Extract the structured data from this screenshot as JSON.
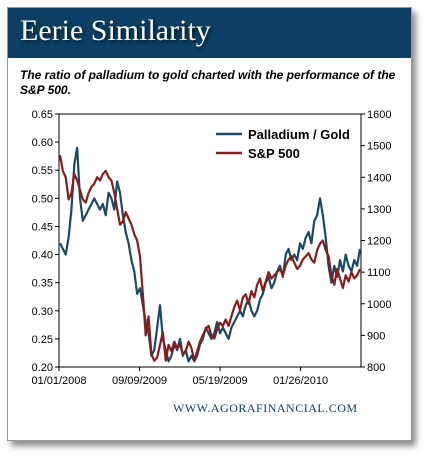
{
  "title": "Eerie Similarity",
  "subtitle": "The ratio of palladium to gold charted with the performance of the S&P 500.",
  "footer": "WWW.AGORAFINANCIAL.COM",
  "colors": {
    "header": "#0c3f63",
    "palladium": "#1a4a66",
    "sp500": "#8b1a1a"
  },
  "chart_data": {
    "type": "line",
    "x_ticks": [
      "01/01/2008",
      "09/09/2009",
      "05/19/2009",
      "01/26/2010"
    ],
    "y_left_ticks": [
      "0.20",
      "0.25",
      "0.30",
      "0.35",
      "0.40",
      "0.45",
      "0.50",
      "0.55",
      "0.60",
      "0.65"
    ],
    "y_right_ticks": [
      "800",
      "900",
      "1000",
      "1100",
      "1200",
      "1300",
      "1400",
      "1500",
      "1600"
    ],
    "ylim_left": [
      0.2,
      0.65
    ],
    "ylim_right": [
      800,
      1600
    ],
    "legend_position": "top-right",
    "series": [
      {
        "name": "Palladium / Gold",
        "axis": "left",
        "color": "#1a4a66",
        "values": [
          0.42,
          0.41,
          0.4,
          0.43,
          0.48,
          0.56,
          0.59,
          0.5,
          0.46,
          0.47,
          0.48,
          0.49,
          0.5,
          0.49,
          0.48,
          0.49,
          0.47,
          0.51,
          0.5,
          0.48,
          0.53,
          0.51,
          0.47,
          0.44,
          0.42,
          0.39,
          0.37,
          0.33,
          0.34,
          0.31,
          0.28,
          0.26,
          0.22,
          0.23,
          0.27,
          0.31,
          0.25,
          0.23,
          0.21,
          0.22,
          0.24,
          0.23,
          0.25,
          0.22,
          0.23,
          0.21,
          0.22,
          0.21,
          0.22,
          0.24,
          0.25,
          0.27,
          0.26,
          0.25,
          0.26,
          0.28,
          0.26,
          0.27,
          0.26,
          0.25,
          0.27,
          0.28,
          0.29,
          0.3,
          0.29,
          0.31,
          0.32,
          0.3,
          0.29,
          0.3,
          0.32,
          0.33,
          0.35,
          0.36,
          0.34,
          0.35,
          0.37,
          0.38,
          0.36,
          0.4,
          0.41,
          0.39,
          0.4,
          0.39,
          0.42,
          0.41,
          0.43,
          0.44,
          0.42,
          0.46,
          0.47,
          0.5,
          0.47,
          0.43,
          0.38,
          0.35,
          0.38,
          0.36,
          0.39,
          0.37,
          0.4,
          0.38,
          0.37,
          0.39,
          0.38,
          0.41
        ]
      },
      {
        "name": "S&P 500",
        "axis": "right",
        "color": "#8b1a1a",
        "values": [
          1470,
          1420,
          1400,
          1330,
          1350,
          1410,
          1390,
          1360,
          1330,
          1320,
          1350,
          1370,
          1380,
          1400,
          1390,
          1410,
          1420,
          1400,
          1390,
          1350,
          1300,
          1250,
          1260,
          1290,
          1270,
          1250,
          1220,
          1200,
          1150,
          1030,
          900,
          960,
          840,
          820,
          830,
          870,
          910,
          820,
          870,
          850,
          880,
          860,
          870,
          840,
          850,
          880,
          860,
          820,
          850,
          880,
          900,
          920,
          930,
          900,
          890,
          920,
          940,
          930,
          950,
          930,
          960,
          990,
          1010,
          980,
          1020,
          1030,
          1000,
          1040,
          1020,
          1060,
          1080,
          1040,
          1070,
          1100,
          1080,
          1090,
          1100,
          1110,
          1090,
          1120,
          1140,
          1150,
          1130,
          1110,
          1120,
          1140,
          1150,
          1160,
          1140,
          1130,
          1170,
          1190,
          1200,
          1170,
          1150,
          1090,
          1060,
          1110,
          1080,
          1050,
          1090,
          1070,
          1100,
          1080,
          1090,
          1110
        ]
      }
    ]
  }
}
